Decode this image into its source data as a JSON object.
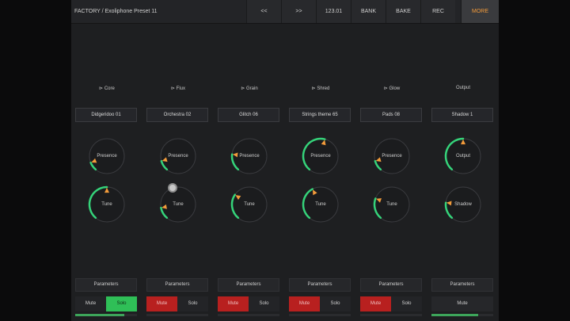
{
  "header": {
    "preset_title": "FACTORY / Exoliphone Preset 11",
    "buttons": [
      {
        "label": "<<",
        "active": false
      },
      {
        "label": ">>",
        "active": false
      },
      {
        "label": "123.01",
        "active": false
      },
      {
        "label": "BANK",
        "active": false
      },
      {
        "label": "BAKE",
        "active": false
      },
      {
        "label": "REC",
        "active": false
      },
      {
        "label": "MORE",
        "active": true
      }
    ]
  },
  "colors": {
    "accent_orange": "#f29b3b",
    "arc_green": "#35d37a",
    "mute_red": "#b8201f",
    "solo_green": "#2fbf57"
  },
  "columns": [
    {
      "label": "⊳ Core",
      "patch": "Didgeridoo 01",
      "knobs": [
        {
          "label": "Presence",
          "value": 0.1
        },
        {
          "label": "Tune",
          "value": 0.5
        }
      ],
      "params_label": "Parameters",
      "mute_label": "Mute",
      "solo_label": "Solo",
      "mute": false,
      "solo": true,
      "level": 0.8
    },
    {
      "label": "⊳ Flux",
      "patch": "Orchestra 02",
      "knobs": [
        {
          "label": "Presence",
          "value": 0.12
        },
        {
          "label": "Tune",
          "value": 0.14
        }
      ],
      "params_label": "Parameters",
      "mute_label": "Mute",
      "solo_label": "Solo",
      "mute": true,
      "solo": false,
      "level": 0
    },
    {
      "label": "⊳ Grain",
      "patch": "Glitch 06",
      "knobs": [
        {
          "label": "Presence",
          "value": 0.2
        },
        {
          "label": "Tune",
          "value": 0.3
        }
      ],
      "params_label": "Parameters",
      "mute_label": "Mute",
      "solo_label": "Solo",
      "mute": true,
      "solo": false,
      "level": 0
    },
    {
      "label": "⊳ Shred",
      "patch": "Strings theme 65",
      "knobs": [
        {
          "label": "Presence",
          "value": 0.55
        },
        {
          "label": "Tune",
          "value": 0.4
        }
      ],
      "params_label": "Parameters",
      "mute_label": "Mute",
      "solo_label": "Solo",
      "mute": true,
      "solo": false,
      "level": 0
    },
    {
      "label": "⊳ Glow",
      "patch": "Pads 08",
      "knobs": [
        {
          "label": "Presence",
          "value": 0.12
        },
        {
          "label": "Tune",
          "value": 0.25
        }
      ],
      "params_label": "Parameters",
      "mute_label": "Mute",
      "solo_label": "Solo",
      "mute": true,
      "solo": false,
      "level": 0
    },
    {
      "label": "Output",
      "patch": "Shadow 1",
      "knobs": [
        {
          "label": "Output",
          "value": 0.5
        },
        {
          "label": "Shadow",
          "value": 0.2
        }
      ],
      "params_label": "Parameters",
      "mute_label": "Mute",
      "mute": false,
      "solo": false,
      "level": 0.75,
      "output": true
    }
  ]
}
